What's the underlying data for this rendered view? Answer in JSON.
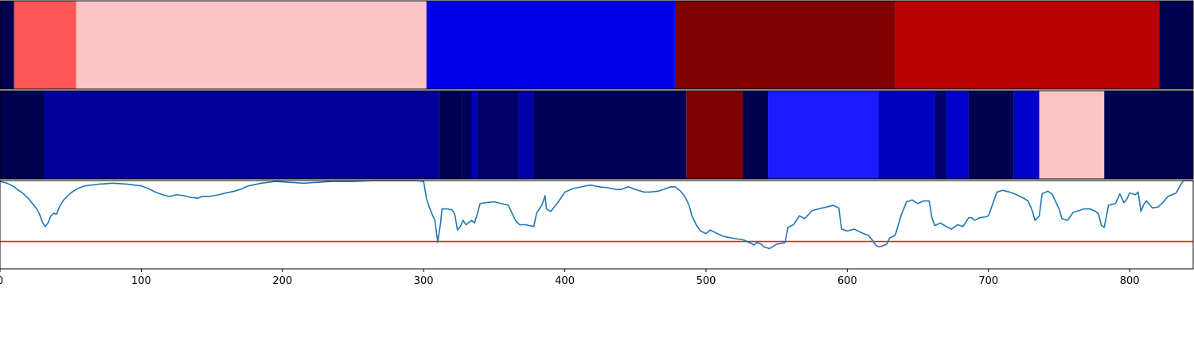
{
  "chart_data": {
    "type": "heatmap",
    "xlim": [
      0,
      845
    ],
    "x_ticks": [
      {
        "value": 0,
        "label": "0"
      },
      {
        "value": 100,
        "label": "100"
      },
      {
        "value": 200,
        "label": "200"
      },
      {
        "value": 300,
        "label": "300"
      },
      {
        "value": 400,
        "label": "400"
      },
      {
        "value": 500,
        "label": "500"
      },
      {
        "value": 600,
        "label": "600"
      },
      {
        "value": 700,
        "label": "700"
      },
      {
        "value": 800,
        "label": "800"
      }
    ],
    "segmentation_tracks": [
      {
        "segments": [
          {
            "start": 0,
            "end": 10,
            "color": "#000050"
          },
          {
            "start": 10,
            "end": 54,
            "color": "#ff5555"
          },
          {
            "start": 54,
            "end": 302,
            "color": "#ffc4c4"
          },
          {
            "start": 302,
            "end": 478,
            "color": "#0000ea"
          },
          {
            "start": 478,
            "end": 634,
            "color": "#800000"
          },
          {
            "start": 634,
            "end": 821,
            "color": "#b80000"
          },
          {
            "start": 821,
            "end": 845,
            "color": "#000050"
          }
        ]
      },
      {
        "segments": [
          {
            "start": 0,
            "end": 31,
            "color": "#000050"
          },
          {
            "start": 31,
            "end": 311,
            "color": "#000099"
          },
          {
            "start": 311,
            "end": 327,
            "color": "#000050"
          },
          {
            "start": 327,
            "end": 334,
            "color": "#00005e"
          },
          {
            "start": 334,
            "end": 338,
            "color": "#0000bb"
          },
          {
            "start": 338,
            "end": 367,
            "color": "#000066"
          },
          {
            "start": 367,
            "end": 378,
            "color": "#0000a8"
          },
          {
            "start": 378,
            "end": 486,
            "color": "#000058"
          },
          {
            "start": 486,
            "end": 526,
            "color": "#800000"
          },
          {
            "start": 526,
            "end": 544,
            "color": "#000050"
          },
          {
            "start": 544,
            "end": 622,
            "color": "#1a1aff"
          },
          {
            "start": 622,
            "end": 662,
            "color": "#0000c0"
          },
          {
            "start": 662,
            "end": 670,
            "color": "#000066"
          },
          {
            "start": 670,
            "end": 686,
            "color": "#0000cc"
          },
          {
            "start": 686,
            "end": 718,
            "color": "#000050"
          },
          {
            "start": 718,
            "end": 736,
            "color": "#0000cc"
          },
          {
            "start": 736,
            "end": 782,
            "color": "#ffc4c4"
          },
          {
            "start": 782,
            "end": 845,
            "color": "#000050"
          }
        ]
      }
    ],
    "signal": {
      "ylim": [
        0,
        1
      ],
      "threshold": 0.31,
      "line_color": "#1f77b4",
      "threshold_color": "#d62728",
      "points": [
        [
          0,
          0.99
        ],
        [
          5,
          0.97
        ],
        [
          10,
          0.93
        ],
        [
          13,
          0.89
        ],
        [
          16,
          0.86
        ],
        [
          20,
          0.8
        ],
        [
          23,
          0.74
        ],
        [
          26,
          0.68
        ],
        [
          28,
          0.62
        ],
        [
          30,
          0.53
        ],
        [
          32,
          0.48
        ],
        [
          34,
          0.52
        ],
        [
          36,
          0.6
        ],
        [
          38,
          0.63
        ],
        [
          40,
          0.62
        ],
        [
          42,
          0.7
        ],
        [
          45,
          0.78
        ],
        [
          50,
          0.86
        ],
        [
          55,
          0.91
        ],
        [
          60,
          0.94
        ],
        [
          70,
          0.96
        ],
        [
          80,
          0.97
        ],
        [
          90,
          0.96
        ],
        [
          100,
          0.94
        ],
        [
          105,
          0.91
        ],
        [
          110,
          0.87
        ],
        [
          115,
          0.84
        ],
        [
          120,
          0.82
        ],
        [
          125,
          0.84
        ],
        [
          130,
          0.83
        ],
        [
          135,
          0.81
        ],
        [
          140,
          0.8
        ],
        [
          143,
          0.82
        ],
        [
          148,
          0.82
        ],
        [
          155,
          0.84
        ],
        [
          160,
          0.86
        ],
        [
          166,
          0.88
        ],
        [
          170,
          0.9
        ],
        [
          176,
          0.94
        ],
        [
          185,
          0.97
        ],
        [
          195,
          0.99
        ],
        [
          205,
          0.98
        ],
        [
          215,
          0.97
        ],
        [
          225,
          0.98
        ],
        [
          235,
          0.99
        ],
        [
          250,
          0.99
        ],
        [
          265,
          1.0
        ],
        [
          280,
          1.0
        ],
        [
          295,
          1.0
        ],
        [
          300,
          0.99
        ],
        [
          302,
          0.8
        ],
        [
          304,
          0.7
        ],
        [
          306,
          0.62
        ],
        [
          308,
          0.55
        ],
        [
          310,
          0.3
        ],
        [
          312,
          0.52
        ],
        [
          313,
          0.68
        ],
        [
          316,
          0.68
        ],
        [
          320,
          0.67
        ],
        [
          322,
          0.62
        ],
        [
          324,
          0.44
        ],
        [
          326,
          0.48
        ],
        [
          328,
          0.55
        ],
        [
          330,
          0.5
        ],
        [
          334,
          0.55
        ],
        [
          336,
          0.52
        ],
        [
          338,
          0.62
        ],
        [
          340,
          0.74
        ],
        [
          344,
          0.75
        ],
        [
          350,
          0.76
        ],
        [
          355,
          0.74
        ],
        [
          360,
          0.72
        ],
        [
          365,
          0.55
        ],
        [
          368,
          0.5
        ],
        [
          372,
          0.5
        ],
        [
          378,
          0.48
        ],
        [
          380,
          0.63
        ],
        [
          384,
          0.73
        ],
        [
          386,
          0.83
        ],
        [
          387,
          0.68
        ],
        [
          390,
          0.65
        ],
        [
          395,
          0.75
        ],
        [
          400,
          0.87
        ],
        [
          406,
          0.91
        ],
        [
          412,
          0.93
        ],
        [
          418,
          0.95
        ],
        [
          424,
          0.93
        ],
        [
          430,
          0.92
        ],
        [
          436,
          0.9
        ],
        [
          440,
          0.9
        ],
        [
          445,
          0.93
        ],
        [
          450,
          0.9
        ],
        [
          456,
          0.87
        ],
        [
          460,
          0.87
        ],
        [
          466,
          0.88
        ],
        [
          470,
          0.9
        ],
        [
          475,
          0.93
        ],
        [
          478,
          0.93
        ],
        [
          482,
          0.88
        ],
        [
          485,
          0.82
        ],
        [
          488,
          0.72
        ],
        [
          490,
          0.6
        ],
        [
          493,
          0.5
        ],
        [
          496,
          0.43
        ],
        [
          500,
          0.4
        ],
        [
          503,
          0.44
        ],
        [
          508,
          0.4
        ],
        [
          512,
          0.37
        ],
        [
          515,
          0.36
        ],
        [
          518,
          0.35
        ],
        [
          522,
          0.34
        ],
        [
          526,
          0.33
        ],
        [
          528,
          0.32
        ],
        [
          530,
          0.3
        ],
        [
          532,
          0.29
        ],
        [
          534,
          0.27
        ],
        [
          536,
          0.3
        ],
        [
          539,
          0.28
        ],
        [
          541,
          0.25
        ],
        [
          543,
          0.24
        ],
        [
          545,
          0.23
        ],
        [
          547,
          0.25
        ],
        [
          550,
          0.28
        ],
        [
          554,
          0.29
        ],
        [
          556,
          0.3
        ],
        [
          558,
          0.47
        ],
        [
          562,
          0.5
        ],
        [
          566,
          0.6
        ],
        [
          570,
          0.57
        ],
        [
          575,
          0.66
        ],
        [
          580,
          0.68
        ],
        [
          585,
          0.7
        ],
        [
          590,
          0.72
        ],
        [
          594,
          0.69
        ],
        [
          596,
          0.45
        ],
        [
          600,
          0.43
        ],
        [
          605,
          0.45
        ],
        [
          610,
          0.41
        ],
        [
          615,
          0.38
        ],
        [
          618,
          0.32
        ],
        [
          620,
          0.27
        ],
        [
          622,
          0.25
        ],
        [
          625,
          0.26
        ],
        [
          628,
          0.28
        ],
        [
          630,
          0.35
        ],
        [
          634,
          0.38
        ],
        [
          638,
          0.6
        ],
        [
          642,
          0.76
        ],
        [
          646,
          0.78
        ],
        [
          650,
          0.74
        ],
        [
          654,
          0.77
        ],
        [
          658,
          0.77
        ],
        [
          660,
          0.58
        ],
        [
          662,
          0.49
        ],
        [
          666,
          0.52
        ],
        [
          670,
          0.48
        ],
        [
          674,
          0.45
        ],
        [
          678,
          0.5
        ],
        [
          682,
          0.48
        ],
        [
          684,
          0.53
        ],
        [
          686,
          0.58
        ],
        [
          688,
          0.58
        ],
        [
          690,
          0.55
        ],
        [
          694,
          0.58
        ],
        [
          698,
          0.59
        ],
        [
          700,
          0.6
        ],
        [
          704,
          0.78
        ],
        [
          706,
          0.87
        ],
        [
          710,
          0.89
        ],
        [
          715,
          0.87
        ],
        [
          720,
          0.84
        ],
        [
          725,
          0.8
        ],
        [
          728,
          0.77
        ],
        [
          731,
          0.66
        ],
        [
          733,
          0.55
        ],
        [
          736,
          0.6
        ],
        [
          738,
          0.85
        ],
        [
          742,
          0.88
        ],
        [
          745,
          0.85
        ],
        [
          750,
          0.68
        ],
        [
          752,
          0.57
        ],
        [
          756,
          0.55
        ],
        [
          760,
          0.64
        ],
        [
          764,
          0.66
        ],
        [
          768,
          0.68
        ],
        [
          772,
          0.68
        ],
        [
          776,
          0.65
        ],
        [
          778,
          0.62
        ],
        [
          780,
          0.49
        ],
        [
          782,
          0.47
        ],
        [
          785,
          0.72
        ],
        [
          790,
          0.74
        ],
        [
          793,
          0.85
        ],
        [
          796,
          0.75
        ],
        [
          798,
          0.79
        ],
        [
          800,
          0.86
        ],
        [
          804,
          0.84
        ],
        [
          806,
          0.87
        ],
        [
          808,
          0.65
        ],
        [
          810,
          0.73
        ],
        [
          812,
          0.77
        ],
        [
          816,
          0.69
        ],
        [
          820,
          0.7
        ],
        [
          824,
          0.76
        ],
        [
          827,
          0.82
        ],
        [
          830,
          0.84
        ],
        [
          833,
          0.86
        ],
        [
          836,
          0.95
        ],
        [
          838,
          1.0
        ],
        [
          842,
          1.0
        ],
        [
          845,
          1.0
        ]
      ]
    }
  }
}
